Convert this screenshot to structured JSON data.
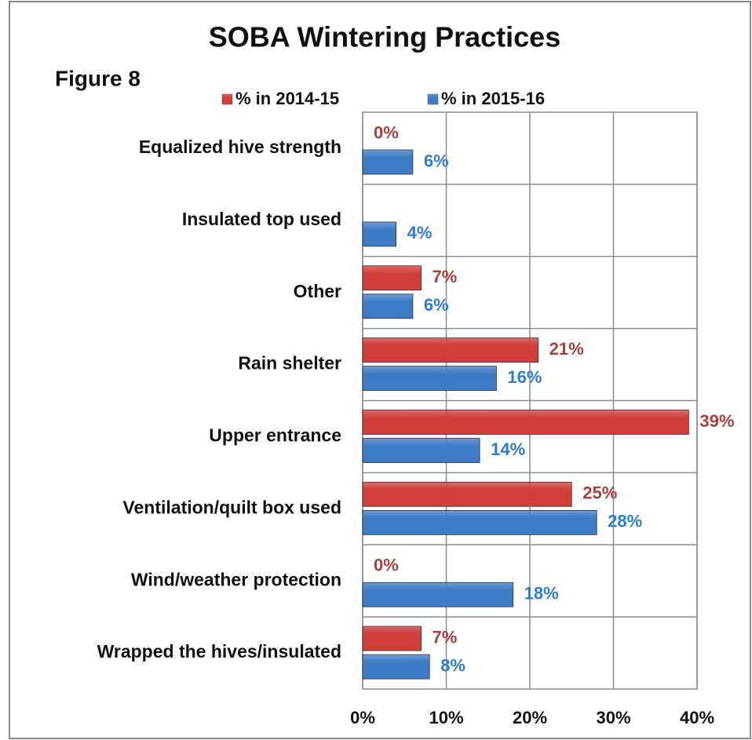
{
  "chart_data": {
    "type": "hbar",
    "title": "SOBA Wintering Practices",
    "annotation": "Figure 8",
    "categories": [
      "Equalized hive strength",
      "Insulated top used",
      "Other",
      "Rain shelter",
      "Upper entrance",
      "Ventilation/quilt box used",
      "Wind/weather protection",
      "Wrapped the hives/insulated"
    ],
    "series": [
      {
        "name": "% in 2014-15",
        "color": "#d23f3a",
        "label_color": "#a8403c",
        "values": [
          0,
          null,
          7,
          21,
          39,
          25,
          0,
          7
        ],
        "value_labels": [
          "0%",
          null,
          "7%",
          "21%",
          "39%",
          "25%",
          "0%",
          "7%"
        ]
      },
      {
        "name": "% in 2015-16",
        "color": "#3f7cc6",
        "label_color": "#2f7bcc",
        "values": [
          6,
          4,
          6,
          16,
          14,
          28,
          18,
          8
        ],
        "value_labels": [
          "6%",
          "4%",
          "6%",
          "16%",
          "14%",
          "28%",
          "18%",
          "8%"
        ]
      }
    ],
    "xlim": [
      0,
      40
    ],
    "xticks": [
      {
        "value": 0,
        "label": "0%"
      },
      {
        "value": 10,
        "label": "10%"
      },
      {
        "value": 20,
        "label": "20%"
      },
      {
        "value": 30,
        "label": "30%"
      },
      {
        "value": 40,
        "label": "40%"
      }
    ],
    "grid": true,
    "legend": "top"
  }
}
